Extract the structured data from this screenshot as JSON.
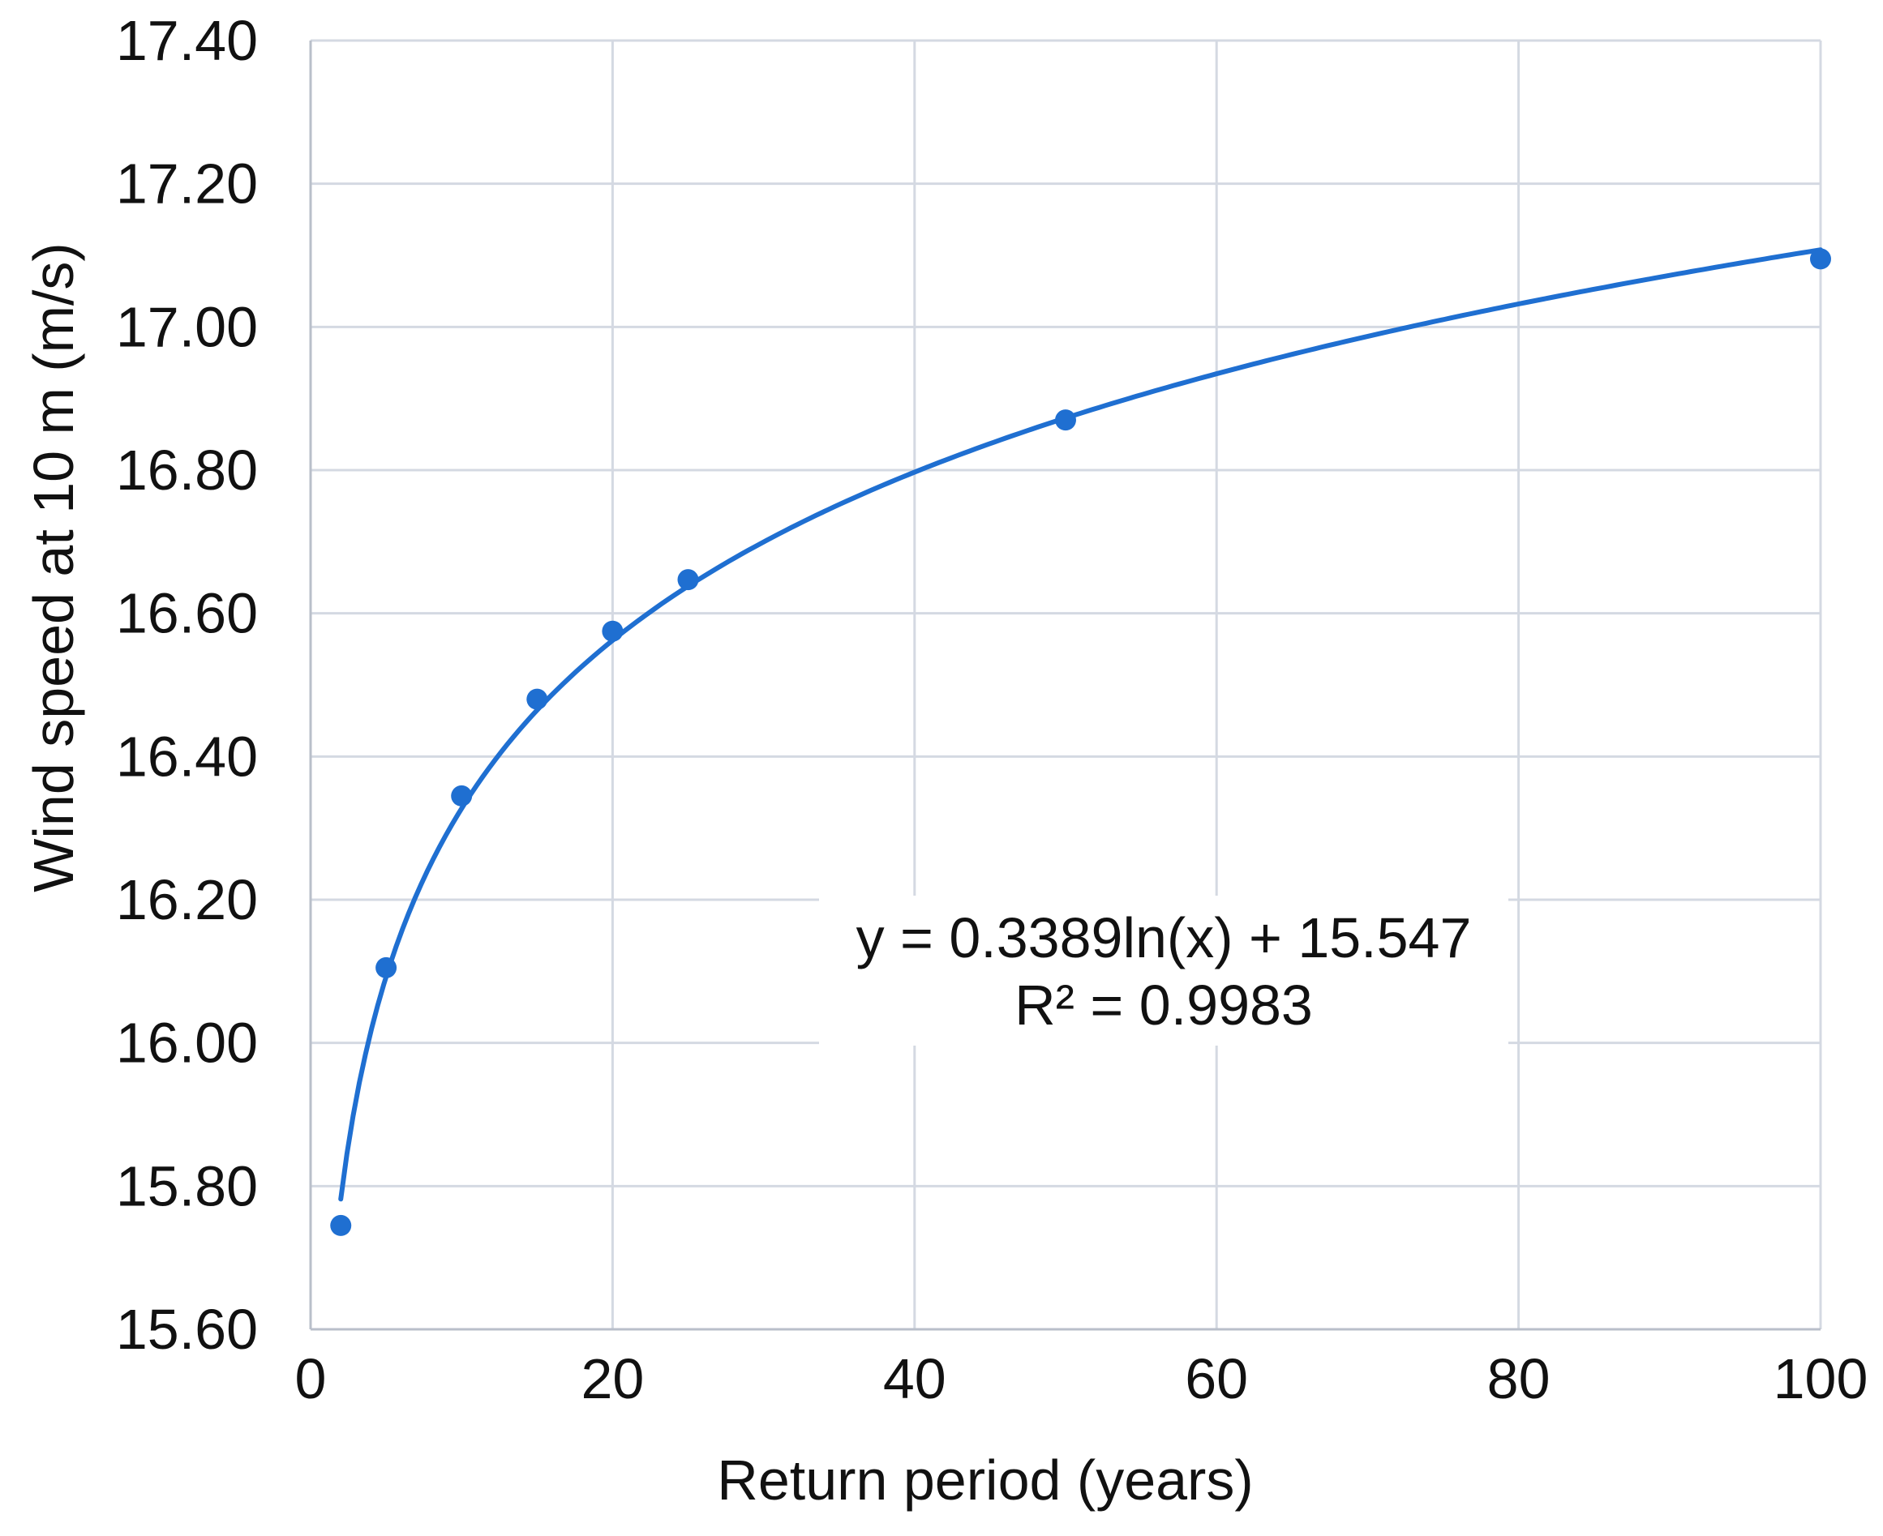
{
  "chart_data": {
    "type": "scatter",
    "title": "",
    "xlabel": "Return period (years)",
    "ylabel": "Wind speed at 10 m (m/s)",
    "xlim": [
      0,
      100
    ],
    "ylim": [
      15.6,
      17.4
    ],
    "x_ticks": [
      0,
      20,
      40,
      60,
      80,
      100
    ],
    "y_ticks": [
      15.6,
      15.8,
      16.0,
      16.2,
      16.4,
      16.6,
      16.8,
      17.0,
      17.2,
      17.4
    ],
    "x_tick_labels": [
      "0",
      "20",
      "40",
      "60",
      "80",
      "100"
    ],
    "y_tick_labels": [
      "15.60",
      "15.80",
      "16.00",
      "16.20",
      "16.40",
      "16.60",
      "16.80",
      "17.00",
      "17.20",
      "17.40"
    ],
    "grid": true,
    "series": [
      {
        "x": [
          2,
          5,
          10,
          15,
          20,
          25,
          50,
          100
        ],
        "y": [
          15.745,
          16.105,
          16.345,
          16.48,
          16.575,
          16.647,
          16.87,
          17.095
        ]
      }
    ],
    "trendline": {
      "type": "logarithmic",
      "a": 0.3389,
      "b": 15.547,
      "x_range": [
        2,
        100
      ],
      "equation_label": "y = 0.3389ln(x) + 15.547",
      "r2_label": "R² = 0.9983"
    },
    "colors": {
      "series": "#1f6fd1",
      "grid": "#d4d9e2",
      "axis": "#b9bfca",
      "text": "#111111"
    }
  }
}
